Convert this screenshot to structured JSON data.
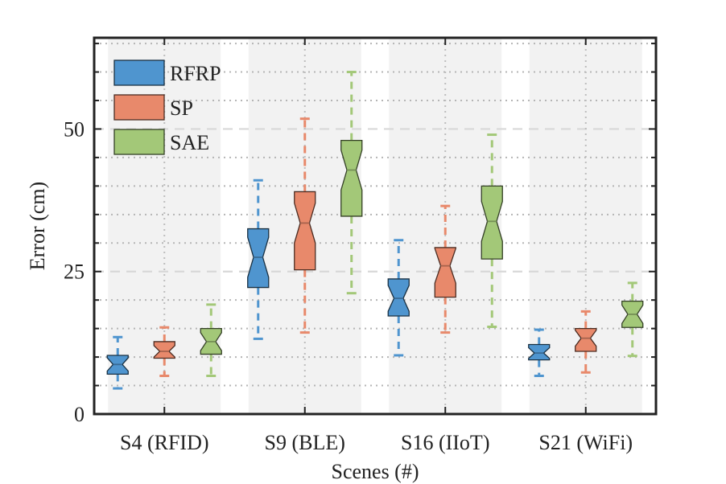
{
  "chart_data": {
    "type": "box",
    "xlabel": "Scenes (#)",
    "ylabel": "Error (cm)",
    "ylim": [
      0,
      66
    ],
    "yticks": [
      0,
      25,
      50
    ],
    "grid": true,
    "notched": true,
    "legend_position": "top-left",
    "categories": [
      "S4 (RFID)",
      "S9 (BLE)",
      "S16 (IIoT)",
      "S21 (WiFi)"
    ],
    "series": [
      {
        "name": "RFRP",
        "color": "#4f95cf",
        "boxes": [
          {
            "whisker_low": 4.5,
            "q1": 7.0,
            "median": 8.7,
            "q3": 10.3,
            "whisker_high": 13.5
          },
          {
            "whisker_low": 13.2,
            "q1": 22.2,
            "median": 27.5,
            "q3": 32.5,
            "whisker_high": 41.0
          },
          {
            "whisker_low": 10.3,
            "q1": 17.2,
            "median": 20.3,
            "q3": 23.7,
            "whisker_high": 30.5
          },
          {
            "whisker_low": 6.7,
            "q1": 9.5,
            "median": 10.7,
            "q3": 12.2,
            "whisker_high": 14.8
          }
        ]
      },
      {
        "name": "SP",
        "color": "#e8896b",
        "boxes": [
          {
            "whisker_low": 6.7,
            "q1": 9.8,
            "median": 11.0,
            "q3": 12.7,
            "whisker_high": 15.2
          },
          {
            "whisker_low": 14.3,
            "q1": 25.3,
            "median": 33.5,
            "q3": 39.0,
            "whisker_high": 51.8
          },
          {
            "whisker_low": 14.3,
            "q1": 20.5,
            "median": 26.0,
            "q3": 29.2,
            "whisker_high": 36.5
          },
          {
            "whisker_low": 7.3,
            "q1": 11.0,
            "median": 13.3,
            "q3": 15.0,
            "whisker_high": 18.0
          }
        ]
      },
      {
        "name": "SAE",
        "color": "#a3c878",
        "boxes": [
          {
            "whisker_low": 6.7,
            "q1": 10.5,
            "median": 12.7,
            "q3": 15.0,
            "whisker_high": 19.2
          },
          {
            "whisker_low": 21.2,
            "q1": 34.7,
            "median": 42.8,
            "q3": 48.0,
            "whisker_high": 60.0
          },
          {
            "whisker_low": 15.3,
            "q1": 27.2,
            "median": 33.8,
            "q3": 40.0,
            "whisker_high": 49.0
          },
          {
            "whisker_low": 10.2,
            "q1": 15.2,
            "median": 17.5,
            "q3": 19.8,
            "whisker_high": 23.0
          }
        ]
      }
    ]
  }
}
